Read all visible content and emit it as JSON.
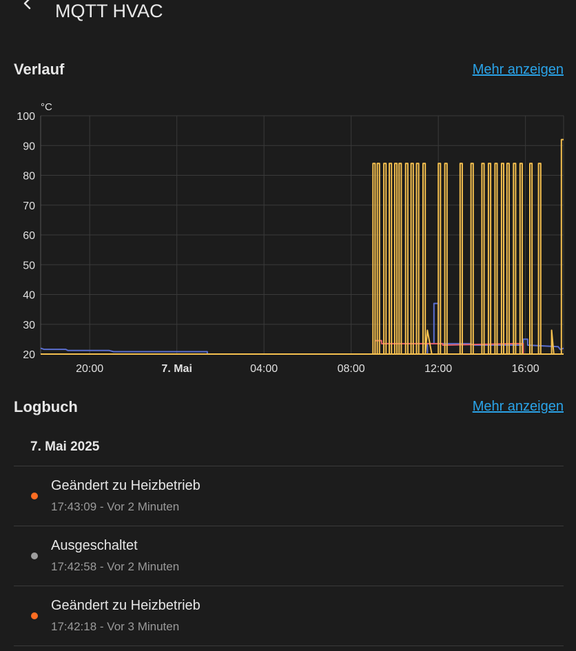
{
  "header": {
    "title": "MQTT HVAC"
  },
  "history": {
    "title": "Verlauf",
    "more_label": "Mehr anzeigen"
  },
  "logbook": {
    "title": "Logbuch",
    "more_label": "Mehr anzeigen",
    "day": "7. Mai 2025",
    "entries": [
      {
        "title": "Geändert zu Heizbetrieb",
        "time": "17:43:09",
        "separator": " - ",
        "relative": "Vor 2 Minuten",
        "dot_color": "#ff6d22"
      },
      {
        "title": "Ausgeschaltet",
        "time": "17:42:58",
        "separator": " - ",
        "relative": "Vor 2 Minuten",
        "dot_color": "#9e9e9e"
      },
      {
        "title": "Geändert zu Heizbetrieb",
        "time": "17:42:18",
        "separator": " - ",
        "relative": "Vor 3 Minuten",
        "dot_color": "#ff6d22"
      }
    ]
  },
  "colors": {
    "accent": "#2aa3e8",
    "background": "#1c1c1c",
    "grid": "#3a3a3a"
  },
  "icons": {
    "back": "chevron-left-icon"
  },
  "chart_data": {
    "type": "line",
    "unit_label": "°C",
    "ylim": [
      20,
      100
    ],
    "y_ticks": [
      "100",
      "90",
      "80",
      "70",
      "60",
      "50",
      "40",
      "30",
      "20"
    ],
    "y_tick_values": [
      100,
      90,
      80,
      70,
      60,
      50,
      40,
      30,
      20
    ],
    "x_range_hours": [
      17.75,
      41.75
    ],
    "x_ticks": [
      {
        "label": "20:00",
        "hour": 20,
        "bold": false
      },
      {
        "label": "7. Mai",
        "hour": 24,
        "bold": true
      },
      {
        "label": "04:00",
        "hour": 28,
        "bold": false
      },
      {
        "label": "08:00",
        "hour": 32,
        "bold": false
      },
      {
        "label": "12:00",
        "hour": 36,
        "bold": false
      },
      {
        "label": "16:00",
        "hour": 40,
        "bold": false
      }
    ],
    "grid": true,
    "series": [
      {
        "color": "#5b6fd0",
        "points": [
          [
            17.75,
            22
          ],
          [
            17.9,
            21.6
          ],
          [
            18.9,
            21.6
          ],
          [
            19,
            21.2
          ],
          [
            20.9,
            21.2
          ],
          [
            21.1,
            20.8
          ],
          [
            25.4,
            20.8
          ],
          [
            25.4,
            20
          ],
          [
            35.5,
            20
          ],
          [
            35.5,
            23.5
          ],
          [
            35.8,
            23.5
          ],
          [
            35.8,
            37
          ],
          [
            36,
            37
          ],
          [
            36,
            23.5
          ],
          [
            37.5,
            23.5
          ],
          [
            37.6,
            23
          ],
          [
            39.9,
            23
          ],
          [
            39.9,
            25
          ],
          [
            40.1,
            25
          ],
          [
            40.1,
            23
          ],
          [
            41.5,
            22.5
          ],
          [
            41.6,
            21.5
          ],
          [
            41.75,
            22
          ]
        ]
      },
      {
        "color": "#e8616a",
        "points": [
          [
            33.1,
            20
          ],
          [
            33.1,
            24.5
          ],
          [
            33.4,
            24.5
          ],
          [
            33.4,
            23.5
          ],
          [
            36.2,
            23.5
          ],
          [
            36.2,
            23
          ],
          [
            39.5,
            23.5
          ],
          [
            39.9,
            23.5
          ],
          [
            39.9,
            20
          ]
        ]
      },
      {
        "color": "#f5c04f",
        "points": [
          [
            17.75,
            20
          ],
          [
            33.0,
            20
          ],
          [
            33.0,
            84
          ],
          [
            33.1,
            84
          ],
          [
            33.1,
            20
          ],
          [
            33.2,
            20
          ],
          [
            33.2,
            84
          ],
          [
            33.3,
            84
          ],
          [
            33.3,
            20
          ],
          [
            33.5,
            20
          ],
          [
            33.5,
            84
          ],
          [
            33.6,
            84
          ],
          [
            33.6,
            20
          ],
          [
            33.75,
            20
          ],
          [
            33.75,
            84
          ],
          [
            33.85,
            84
          ],
          [
            33.85,
            20
          ],
          [
            34.0,
            20
          ],
          [
            34.0,
            84
          ],
          [
            34.1,
            84
          ],
          [
            34.1,
            20
          ],
          [
            34.2,
            20
          ],
          [
            34.2,
            84
          ],
          [
            34.3,
            84
          ],
          [
            34.3,
            20
          ],
          [
            34.5,
            20
          ],
          [
            34.5,
            84
          ],
          [
            34.6,
            84
          ],
          [
            34.6,
            20
          ],
          [
            34.75,
            20
          ],
          [
            34.75,
            84
          ],
          [
            34.85,
            84
          ],
          [
            34.85,
            20
          ],
          [
            35.0,
            20
          ],
          [
            35.0,
            84
          ],
          [
            35.1,
            84
          ],
          [
            35.1,
            20
          ],
          [
            35.3,
            20
          ],
          [
            35.3,
            84
          ],
          [
            35.4,
            84
          ],
          [
            35.4,
            20
          ],
          [
            35.5,
            28
          ],
          [
            35.7,
            20
          ],
          [
            36.0,
            20
          ],
          [
            36.0,
            84
          ],
          [
            36.1,
            84
          ],
          [
            36.1,
            20
          ],
          [
            36.3,
            20
          ],
          [
            36.3,
            84
          ],
          [
            36.4,
            84
          ],
          [
            36.4,
            20
          ],
          [
            37.0,
            20
          ],
          [
            37.0,
            84
          ],
          [
            37.1,
            84
          ],
          [
            37.1,
            20
          ],
          [
            37.5,
            20
          ],
          [
            37.5,
            84
          ],
          [
            37.6,
            84
          ],
          [
            37.6,
            20
          ],
          [
            38.0,
            20
          ],
          [
            38.0,
            84
          ],
          [
            38.1,
            84
          ],
          [
            38.1,
            20
          ],
          [
            38.3,
            20
          ],
          [
            38.3,
            84
          ],
          [
            38.4,
            84
          ],
          [
            38.4,
            20
          ],
          [
            38.6,
            20
          ],
          [
            38.6,
            84
          ],
          [
            38.7,
            84
          ],
          [
            38.7,
            20
          ],
          [
            38.9,
            20
          ],
          [
            38.9,
            84
          ],
          [
            39.0,
            84
          ],
          [
            39.0,
            20
          ],
          [
            39.15,
            20
          ],
          [
            39.15,
            84
          ],
          [
            39.25,
            84
          ],
          [
            39.25,
            20
          ],
          [
            39.45,
            20
          ],
          [
            39.45,
            84
          ],
          [
            39.55,
            84
          ],
          [
            39.55,
            20
          ],
          [
            39.75,
            20
          ],
          [
            39.75,
            84
          ],
          [
            39.85,
            84
          ],
          [
            39.85,
            20
          ],
          [
            40.2,
            20
          ],
          [
            40.2,
            84
          ],
          [
            40.3,
            84
          ],
          [
            40.3,
            20
          ],
          [
            40.6,
            20
          ],
          [
            40.6,
            84
          ],
          [
            40.7,
            84
          ],
          [
            40.7,
            20
          ],
          [
            41.2,
            20
          ],
          [
            41.2,
            28
          ],
          [
            41.3,
            20
          ],
          [
            41.65,
            20
          ],
          [
            41.65,
            92
          ],
          [
            41.75,
            92
          ]
        ]
      }
    ]
  }
}
